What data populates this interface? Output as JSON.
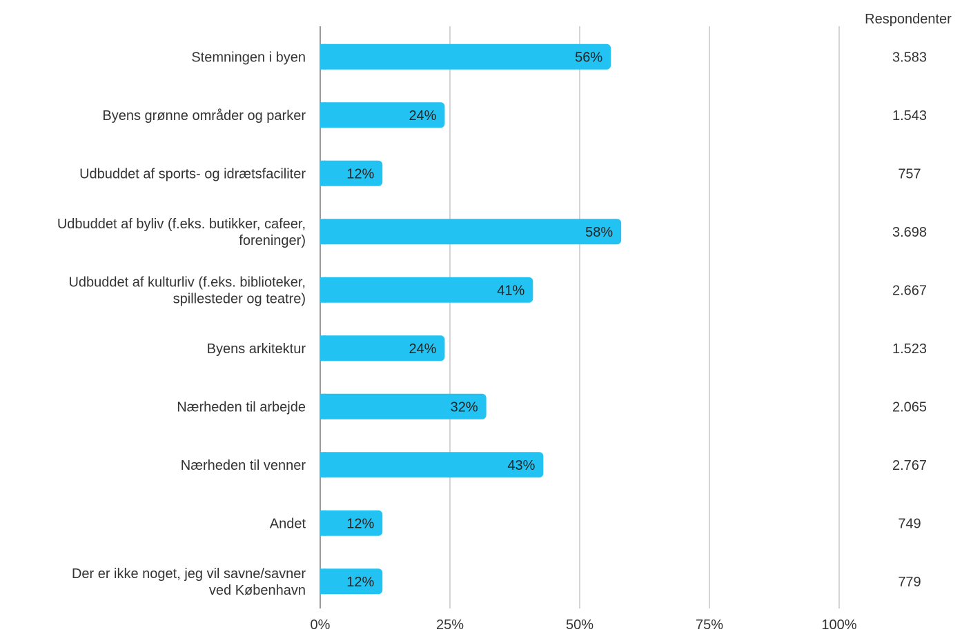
{
  "chart_data": {
    "type": "bar",
    "orientation": "horizontal",
    "categories": [
      [
        "Stemningen i byen"
      ],
      [
        "Byens grønne områder og parker"
      ],
      [
        "Udbuddet af sports- og idrætsfaciliter"
      ],
      [
        "Udbuddet af byliv (f.eks. butikker, cafeer,",
        "foreninger)"
      ],
      [
        "Udbuddet af kulturliv (f.eks. biblioteker,",
        "spillesteder og teatre)"
      ],
      [
        "Byens arkitektur"
      ],
      [
        "Nærheden til arbejde"
      ],
      [
        "Nærheden til venner"
      ],
      [
        "Andet"
      ],
      [
        "Der er ikke noget, jeg vil savne/savner",
        "ved København"
      ]
    ],
    "values": [
      56,
      24,
      12,
      58,
      41,
      24,
      32,
      43,
      12,
      12
    ],
    "value_labels": [
      "56%",
      "24%",
      "12%",
      "58%",
      "41%",
      "24%",
      "32%",
      "43%",
      "12%",
      "12%"
    ],
    "respondents_header": "Respondenter",
    "respondents": [
      "3.583",
      "1.543",
      "757",
      "3.698",
      "2.667",
      "1.523",
      "2.065",
      "2.767",
      "749",
      "779"
    ],
    "xlim": [
      0,
      100
    ],
    "xticks": [
      0,
      25,
      50,
      75,
      100
    ],
    "xtick_labels": [
      "0%",
      "25%",
      "50%",
      "75%",
      "100%"
    ],
    "grid": true,
    "bar_color": "#22c3f3",
    "grid_color": "#aaaaaa",
    "axis_color": "#999999"
  }
}
